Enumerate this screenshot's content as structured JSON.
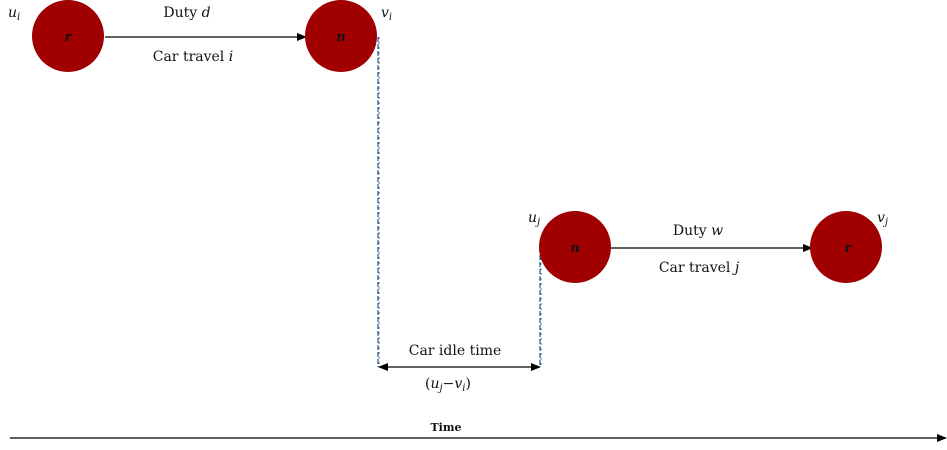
{
  "colors": {
    "node_fill": "#a00000",
    "line": "#000000",
    "dashed_connector": "#1f5fa8"
  },
  "nodes": [
    {
      "label": "r",
      "corner": "u",
      "sub": "i"
    },
    {
      "label": "n",
      "corner": "v",
      "sub": "i"
    },
    {
      "label": "n",
      "corner": "u",
      "sub": "j"
    },
    {
      "label": "r",
      "corner": "v",
      "sub": "j"
    }
  ],
  "edges": [
    {
      "duty_text": "Duty ",
      "duty_var": "d",
      "travel_text": "Car travel ",
      "travel_var": "i"
    },
    {
      "duty_text": "Duty ",
      "duty_var": "w",
      "travel_text": "Car travel ",
      "travel_var": "j"
    }
  ],
  "idle": {
    "label": "Car idle time",
    "formula": {
      "open": "(",
      "a": "u",
      "a_sub": "j",
      "minus": "−",
      "b": "v",
      "b_sub": "i",
      "close": ")"
    }
  },
  "time_axis": {
    "label": "Time"
  }
}
